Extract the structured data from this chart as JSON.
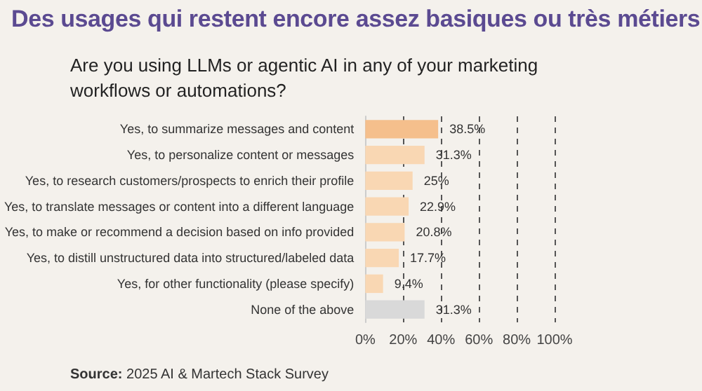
{
  "chart_data": {
    "type": "bar",
    "orientation": "horizontal",
    "title": "Des usages qui restent encore assez basiques ou très métiers",
    "subtitle": "Are you using LLMs or agentic AI in any of your marketing workflows or automations?",
    "categories": [
      "Yes, to summarize messages and content",
      "Yes, to personalize content or messages",
      "Yes, to research customers/prospects to enrich their profile",
      "Yes, to translate messages or content into a different language",
      "Yes, to make or recommend a decision based on info provided",
      "Yes, to distill unstructured data into structured/labeled data",
      "Yes, for other functionality (please specify)",
      "None of the above"
    ],
    "values": [
      38.5,
      31.3,
      25,
      22.9,
      20.8,
      17.7,
      9.4,
      31.3
    ],
    "colors": [
      "#f5bf8c",
      "#f9d7b3",
      "#f9d7b3",
      "#f9d7b3",
      "#f9d7b3",
      "#f9d7b3",
      "#f9d7b3",
      "#d9d9d9"
    ],
    "value_labels": [
      "38.5%",
      "31.3%",
      "25%",
      "22.9%",
      "20.8%",
      "17.7%",
      "9.4%",
      "31.3%"
    ],
    "xlim": [
      0,
      100
    ],
    "xticks": [
      {
        "value": 0,
        "label": "0%"
      },
      {
        "value": 20,
        "label": "20%"
      },
      {
        "value": 40,
        "label": "40%"
      },
      {
        "value": 60,
        "label": "60%"
      },
      {
        "value": 80,
        "label": "80%"
      },
      {
        "value": 100,
        "label": "100%"
      }
    ],
    "grid": "x",
    "annotations": [
      "Source: 2025 AI & Martech Stack Survey"
    ]
  }
}
